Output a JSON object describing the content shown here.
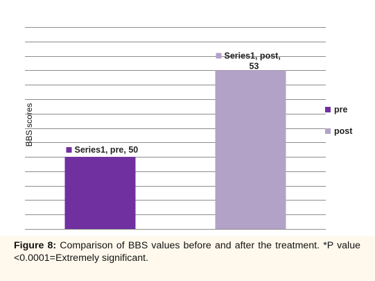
{
  "chart_data": {
    "type": "bar",
    "title": "",
    "xlabel": "",
    "ylabel": "BBS scores",
    "ylim": [
      47.5,
      54.5
    ],
    "grid": true,
    "legend_placement": "right",
    "categories": [
      "pre",
      "post"
    ],
    "values": [
      50,
      53
    ],
    "data_labels": [
      "Series1, pre, 50",
      "Series1, post, 53"
    ],
    "colors": [
      "#7030a0",
      "#b3a2c7"
    ],
    "legend": [
      {
        "label": "pre",
        "color": "#7030a0"
      },
      {
        "label": "post",
        "color": "#b3a2c7"
      }
    ]
  },
  "caption": {
    "label": "Figure 8:",
    "text": "Comparison of BBS values before and after the treatment. *P value <0.0001=Extremely significant."
  },
  "colors": {
    "panel_background": "#fff9ed",
    "chart_background": "#ffffff",
    "gridline": "#8c8c8c",
    "text": "#111111"
  }
}
